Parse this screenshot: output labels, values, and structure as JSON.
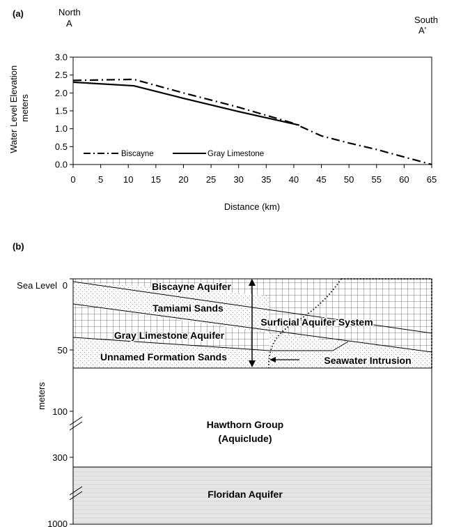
{
  "panel_a": {
    "label": "(a)",
    "north_label": "North",
    "north_letter": "A",
    "south_label": "South",
    "south_letter": "A'"
  },
  "panel_b": {
    "label": "(b)",
    "sea_level_label": "Sea Level",
    "y_axis_label": "meters",
    "depth_ticks": [
      "0",
      "50",
      "100",
      "300",
      "1000"
    ],
    "layers": {
      "biscayne": "Biscayne Aquifer",
      "tamiami": "Tamiami Sands",
      "surficial": "Surficial Aquifer System",
      "gray_limestone": "Gray Limestone Aquifer",
      "unnamed": "Unnamed Formation Sands",
      "seawater": "Seawater Intrusion",
      "hawthorn_1": "Hawthorn Group",
      "hawthorn_2": "(Aquiclude)",
      "floridan": "Floridan Aquifer"
    },
    "colors": {
      "grid": "#555555",
      "dots": "#777777",
      "floridan_fill": "#e6e6e6",
      "floridan_lines": "#c8c8c8"
    }
  },
  "chart_data": {
    "type": "line",
    "title": "",
    "xlabel": "Distance (km)",
    "ylabel": "Water Level Elevation meters",
    "xlim": [
      0,
      65
    ],
    "ylim": [
      0,
      3
    ],
    "x_ticks": [
      "0",
      "5",
      "10",
      "15",
      "20",
      "25",
      "30",
      "35",
      "40",
      "45",
      "50",
      "55",
      "60",
      "65"
    ],
    "y_ticks": [
      "0.0",
      "0.5",
      "1.0",
      "1.5",
      "2.0",
      "2.5",
      "3.0"
    ],
    "grid": false,
    "legend_placement": "bottom-left",
    "series": [
      {
        "name": "Biscayne",
        "style": "dash-dot",
        "x": [
          0,
          11,
          20,
          30,
          40,
          45,
          50,
          55,
          65
        ],
        "y": [
          2.35,
          2.38,
          2.0,
          1.6,
          1.15,
          0.8,
          0.6,
          0.42,
          0.0
        ]
      },
      {
        "name": "Gray Limestone",
        "style": "solid",
        "x": [
          0,
          11,
          20,
          30,
          41
        ],
        "y": [
          2.3,
          2.2,
          1.85,
          1.48,
          1.1
        ]
      }
    ]
  }
}
